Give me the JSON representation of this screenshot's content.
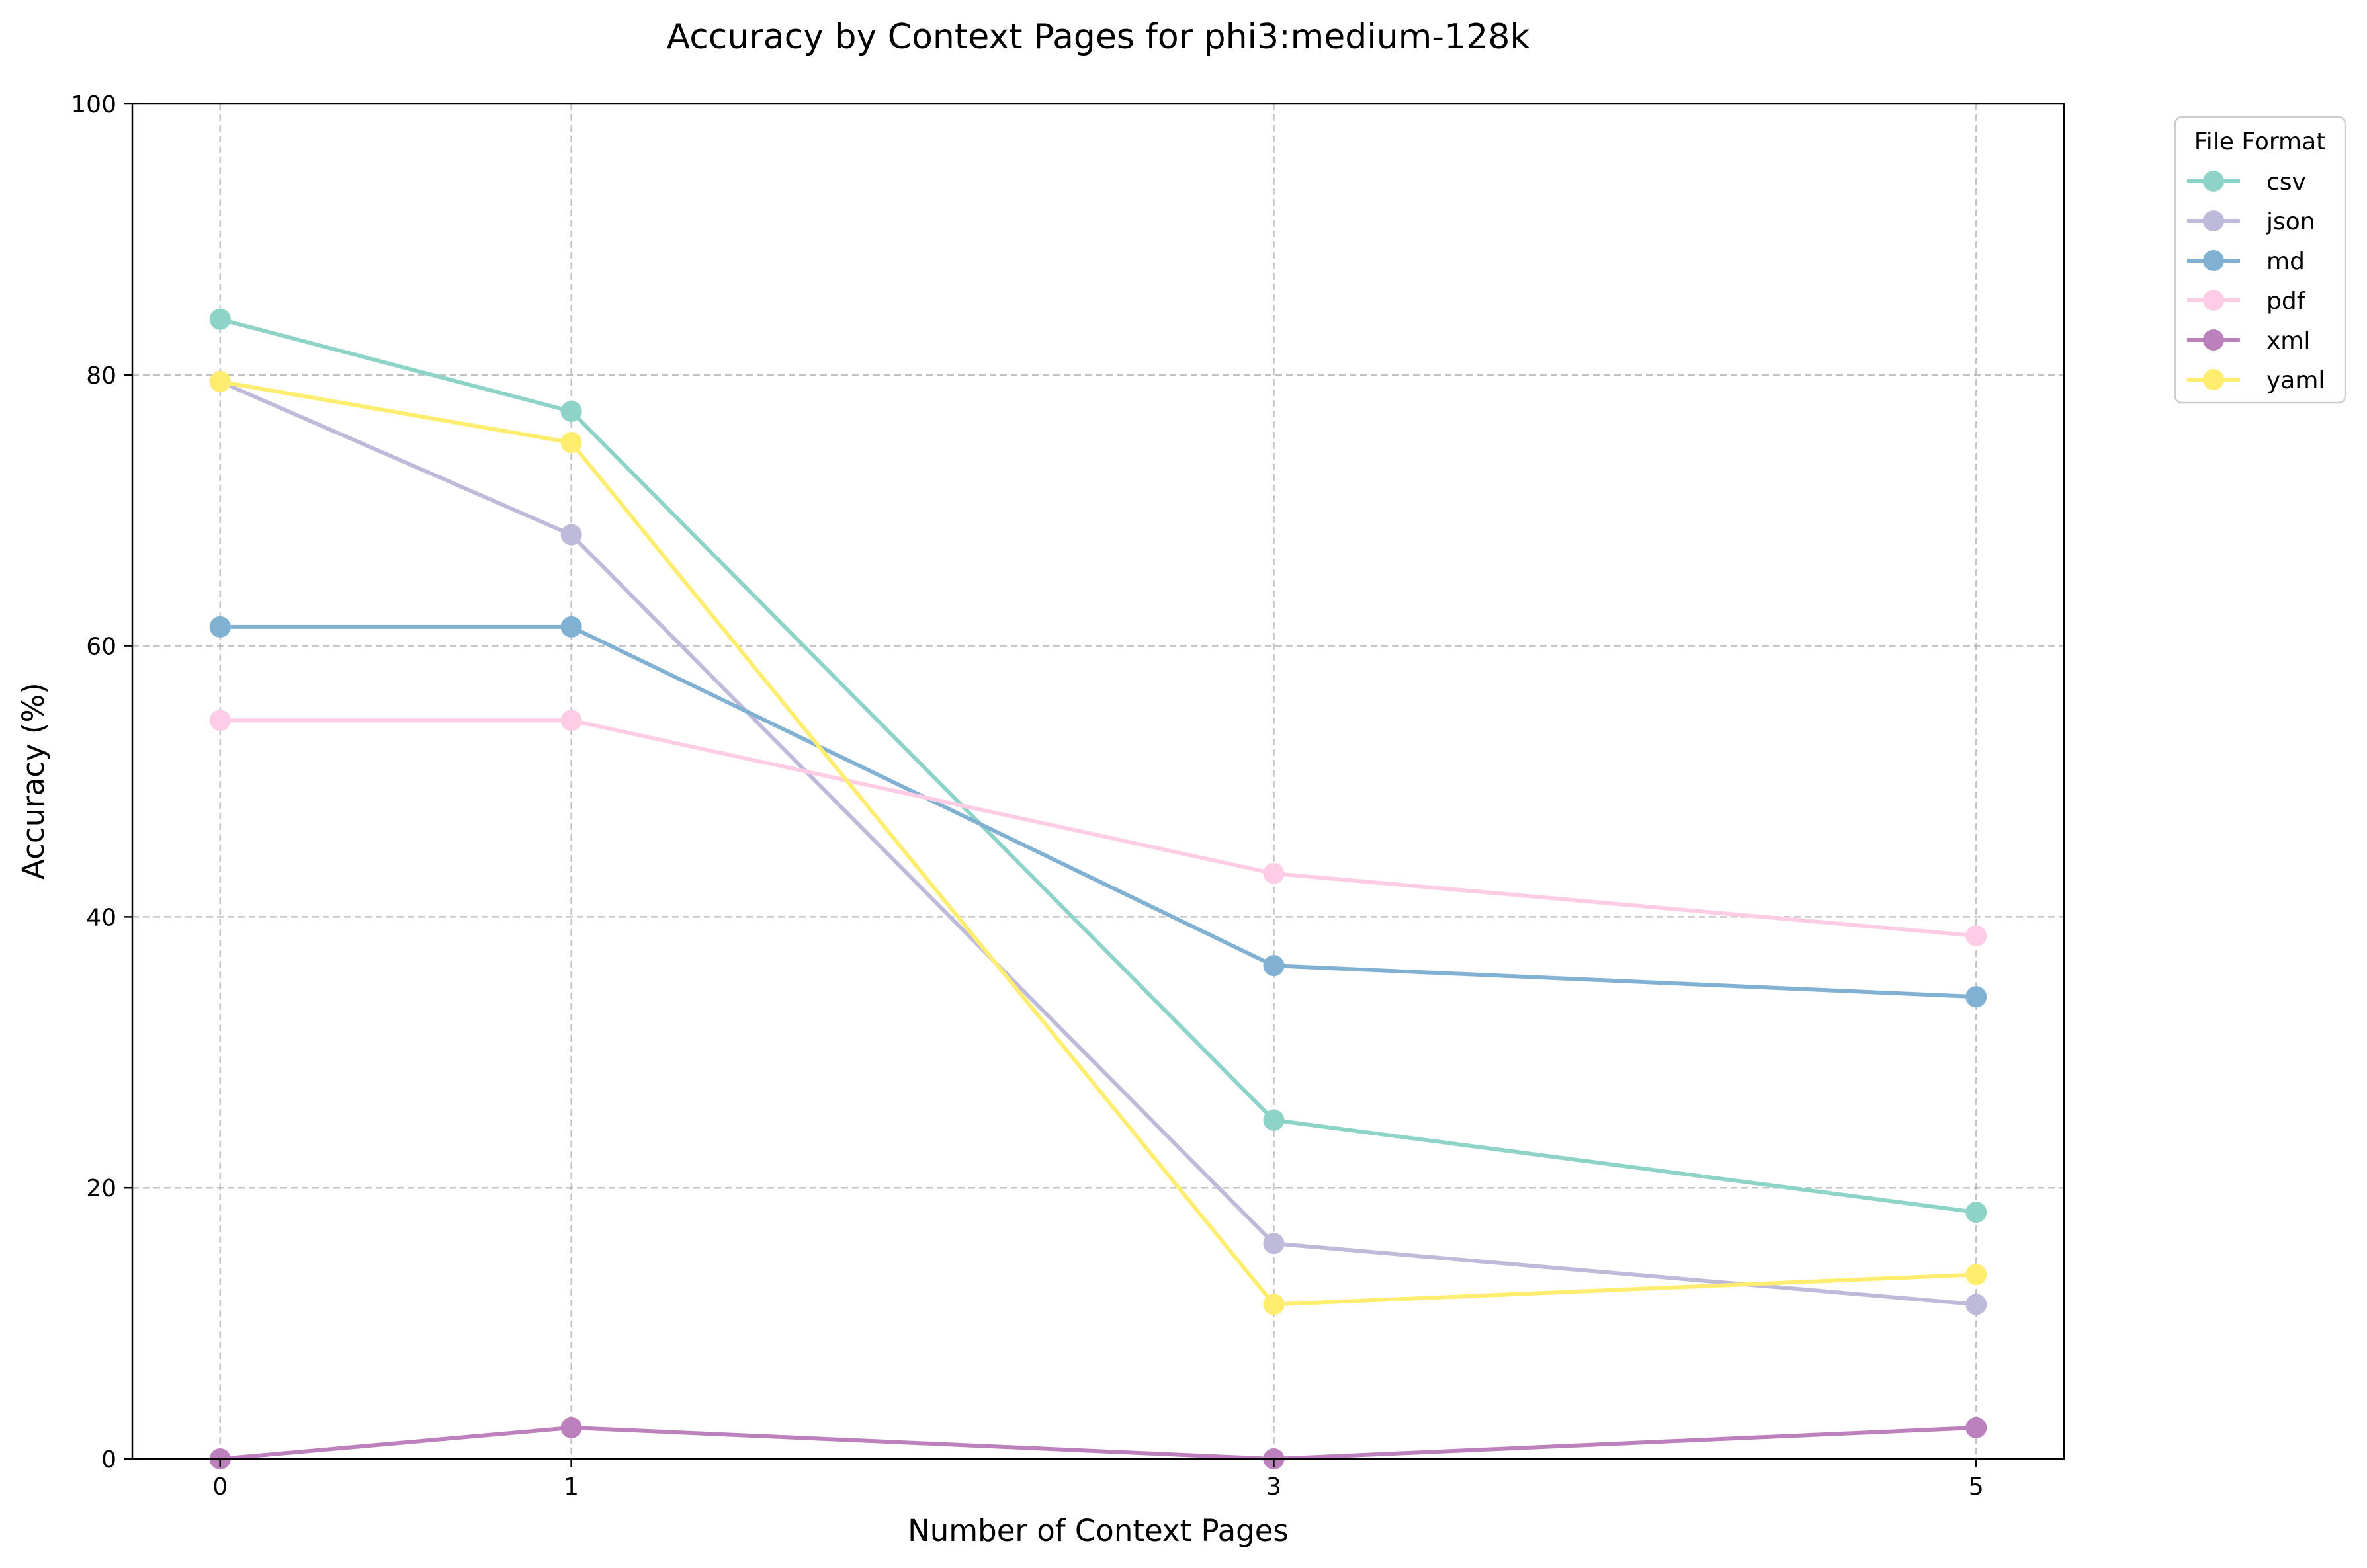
{
  "chart_data": {
    "type": "line",
    "title": "Accuracy by Context Pages for phi3:medium-128k",
    "xlabel": "Number of Context Pages",
    "ylabel": "Accuracy (%)",
    "x": [
      0,
      1,
      3,
      5
    ],
    "xticks": [
      "0",
      "1",
      "3",
      "5"
    ],
    "xlim": [
      -0.25,
      5.25
    ],
    "ylim": [
      0,
      100
    ],
    "yticks": [
      "0",
      "20",
      "40",
      "60",
      "80",
      "100"
    ],
    "grid": true,
    "legend": {
      "title": "File Format",
      "placement": "outside-top-right"
    },
    "series": [
      {
        "name": "csv",
        "color": "#8dd3c7",
        "values": [
          84.1,
          77.3,
          25.0,
          18.2
        ]
      },
      {
        "name": "json",
        "color": "#bebada",
        "values": [
          79.5,
          68.2,
          15.9,
          11.4
        ]
      },
      {
        "name": "md",
        "color": "#80b1d3",
        "values": [
          61.4,
          61.4,
          36.4,
          34.1
        ]
      },
      {
        "name": "pdf",
        "color": "#fccde5",
        "values": [
          54.5,
          54.5,
          43.2,
          38.6
        ]
      },
      {
        "name": "xml",
        "color": "#bc80bd",
        "values": [
          0.0,
          2.3,
          0.0,
          2.3
        ]
      },
      {
        "name": "yaml",
        "color": "#ffed6f",
        "values": [
          79.5,
          75.0,
          11.4,
          13.6
        ]
      }
    ]
  }
}
